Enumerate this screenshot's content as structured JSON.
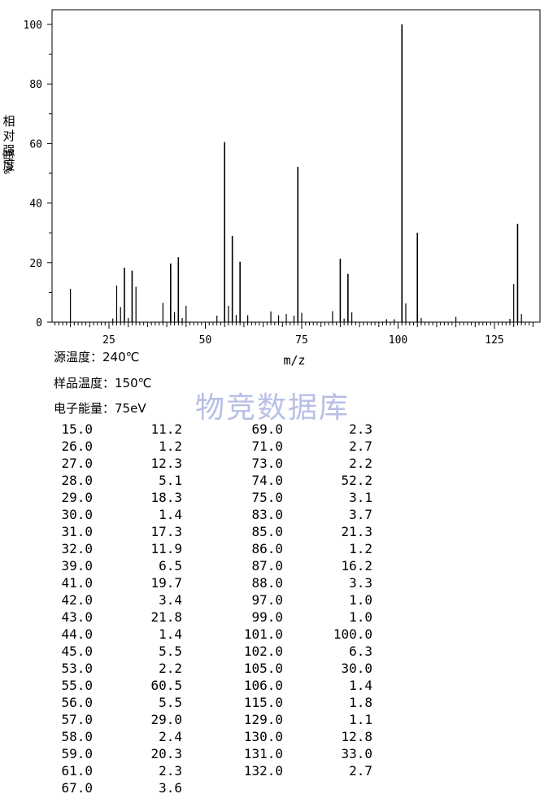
{
  "chart_data": {
    "type": "bar",
    "xlabel": "m/z",
    "ylabel": "相对强度%/度",
    "xlim": [
      10,
      136
    ],
    "ylim": [
      0,
      105
    ],
    "xticks": [
      25,
      50,
      75,
      100,
      125
    ],
    "yticks": [
      0,
      20,
      40,
      60,
      80,
      100
    ],
    "grid": false,
    "peaks": [
      {
        "mz": 15.0,
        "intensity": 11.2
      },
      {
        "mz": 26.0,
        "intensity": 1.2
      },
      {
        "mz": 27.0,
        "intensity": 12.3
      },
      {
        "mz": 28.0,
        "intensity": 5.1
      },
      {
        "mz": 29.0,
        "intensity": 18.3
      },
      {
        "mz": 30.0,
        "intensity": 1.4
      },
      {
        "mz": 31.0,
        "intensity": 17.3
      },
      {
        "mz": 32.0,
        "intensity": 11.9
      },
      {
        "mz": 39.0,
        "intensity": 6.5
      },
      {
        "mz": 41.0,
        "intensity": 19.7
      },
      {
        "mz": 42.0,
        "intensity": 3.4
      },
      {
        "mz": 43.0,
        "intensity": 21.8
      },
      {
        "mz": 44.0,
        "intensity": 1.4
      },
      {
        "mz": 45.0,
        "intensity": 5.5
      },
      {
        "mz": 53.0,
        "intensity": 2.2
      },
      {
        "mz": 55.0,
        "intensity": 60.5
      },
      {
        "mz": 56.0,
        "intensity": 5.5
      },
      {
        "mz": 57.0,
        "intensity": 29.0
      },
      {
        "mz": 58.0,
        "intensity": 2.4
      },
      {
        "mz": 59.0,
        "intensity": 20.3
      },
      {
        "mz": 61.0,
        "intensity": 2.3
      },
      {
        "mz": 67.0,
        "intensity": 3.6
      },
      {
        "mz": 69.0,
        "intensity": 2.3
      },
      {
        "mz": 71.0,
        "intensity": 2.7
      },
      {
        "mz": 73.0,
        "intensity": 2.2
      },
      {
        "mz": 74.0,
        "intensity": 52.2
      },
      {
        "mz": 75.0,
        "intensity": 3.1
      },
      {
        "mz": 83.0,
        "intensity": 3.7
      },
      {
        "mz": 85.0,
        "intensity": 21.3
      },
      {
        "mz": 86.0,
        "intensity": 1.2
      },
      {
        "mz": 87.0,
        "intensity": 16.2
      },
      {
        "mz": 88.0,
        "intensity": 3.3
      },
      {
        "mz": 97.0,
        "intensity": 1.0
      },
      {
        "mz": 99.0,
        "intensity": 1.0
      },
      {
        "mz": 101.0,
        "intensity": 100.0
      },
      {
        "mz": 102.0,
        "intensity": 6.3
      },
      {
        "mz": 105.0,
        "intensity": 30.0
      },
      {
        "mz": 106.0,
        "intensity": 1.4
      },
      {
        "mz": 115.0,
        "intensity": 1.8
      },
      {
        "mz": 129.0,
        "intensity": 1.1
      },
      {
        "mz": 130.0,
        "intensity": 12.8
      },
      {
        "mz": 131.0,
        "intensity": 33.0
      },
      {
        "mz": 132.0,
        "intensity": 2.7
      }
    ]
  },
  "info": {
    "source_temp": "源温度：240℃",
    "sample_temp": "样品温度：150℃",
    "electron_energy": "电子能量：75eV"
  },
  "ylabel_cjk": "相对强度",
  "ylabel_pct": "%/度",
  "watermark": "物竞数据库",
  "table": {
    "left": [
      [
        "15.0",
        "11.2"
      ],
      [
        "26.0",
        "1.2"
      ],
      [
        "27.0",
        "12.3"
      ],
      [
        "28.0",
        "5.1"
      ],
      [
        "29.0",
        "18.3"
      ],
      [
        "30.0",
        "1.4"
      ],
      [
        "31.0",
        "17.3"
      ],
      [
        "32.0",
        "11.9"
      ],
      [
        "39.0",
        "6.5"
      ],
      [
        "41.0",
        "19.7"
      ],
      [
        "42.0",
        "3.4"
      ],
      [
        "43.0",
        "21.8"
      ],
      [
        "44.0",
        "1.4"
      ],
      [
        "45.0",
        "5.5"
      ],
      [
        "53.0",
        "2.2"
      ],
      [
        "55.0",
        "60.5"
      ],
      [
        "56.0",
        "5.5"
      ],
      [
        "57.0",
        "29.0"
      ],
      [
        "58.0",
        "2.4"
      ],
      [
        "59.0",
        "20.3"
      ],
      [
        "61.0",
        "2.3"
      ],
      [
        "67.0",
        "3.6"
      ]
    ],
    "right": [
      [
        "69.0",
        "2.3"
      ],
      [
        "71.0",
        "2.7"
      ],
      [
        "73.0",
        "2.2"
      ],
      [
        "74.0",
        "52.2"
      ],
      [
        "75.0",
        "3.1"
      ],
      [
        "83.0",
        "3.7"
      ],
      [
        "85.0",
        "21.3"
      ],
      [
        "86.0",
        "1.2"
      ],
      [
        "87.0",
        "16.2"
      ],
      [
        "88.0",
        "3.3"
      ],
      [
        "97.0",
        "1.0"
      ],
      [
        "99.0",
        "1.0"
      ],
      [
        "101.0",
        "100.0"
      ],
      [
        "102.0",
        "6.3"
      ],
      [
        "105.0",
        "30.0"
      ],
      [
        "106.0",
        "1.4"
      ],
      [
        "115.0",
        "1.8"
      ],
      [
        "129.0",
        "1.1"
      ],
      [
        "130.0",
        "12.8"
      ],
      [
        "131.0",
        "33.0"
      ],
      [
        "132.0",
        "2.7"
      ]
    ]
  }
}
